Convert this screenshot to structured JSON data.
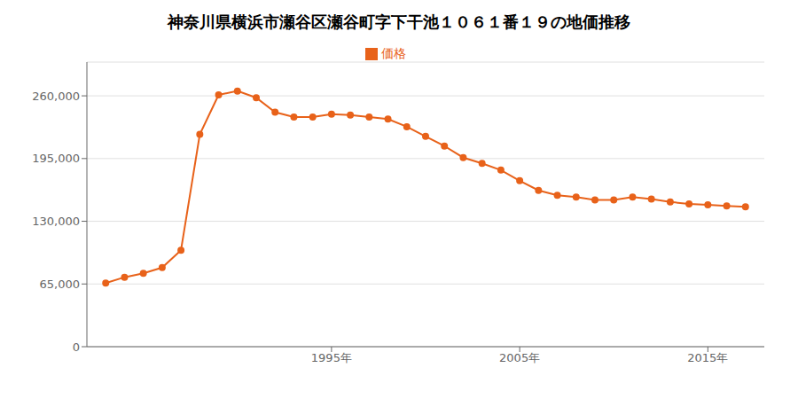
{
  "chart_data": {
    "type": "line",
    "title": "神奈川県横浜市瀬谷区瀬谷町字下干池１０６１番１９の地価推移",
    "x": [
      1983,
      1984,
      1985,
      1986,
      1987,
      1988,
      1989,
      1990,
      1991,
      1992,
      1993,
      1994,
      1995,
      1996,
      1997,
      1998,
      1999,
      2000,
      2001,
      2002,
      2003,
      2004,
      2005,
      2006,
      2007,
      2008,
      2009,
      2010,
      2011,
      2012,
      2013,
      2014,
      2015,
      2016,
      2017
    ],
    "series": [
      {
        "name": "価格",
        "color": "#e8621a",
        "marker": "circle",
        "values": [
          66000,
          72000,
          76000,
          82000,
          100000,
          220000,
          261000,
          265000,
          258000,
          243000,
          238000,
          238000,
          241000,
          240000,
          238000,
          236000,
          228000,
          218000,
          208000,
          196000,
          190000,
          183000,
          172000,
          162000,
          157000,
          155000,
          152000,
          152000,
          155000,
          153000,
          150000,
          148000,
          147000,
          146000,
          145000
        ]
      }
    ],
    "xlim": [
      1982,
      2018
    ],
    "xticks": [
      {
        "value": 1995,
        "label": "1995年"
      },
      {
        "value": 2005,
        "label": "2005年"
      },
      {
        "value": 2015,
        "label": "2015年"
      }
    ],
    "ylim": [
      0,
      295000
    ],
    "yticks": [
      0,
      {
        "value": 65000,
        "label": "65,000"
      },
      {
        "value": 130000,
        "label": "130,000"
      },
      {
        "value": 195000,
        "label": "195,000"
      },
      {
        "value": 260000,
        "label": "260,000"
      }
    ],
    "grid": true,
    "legend": "top"
  }
}
